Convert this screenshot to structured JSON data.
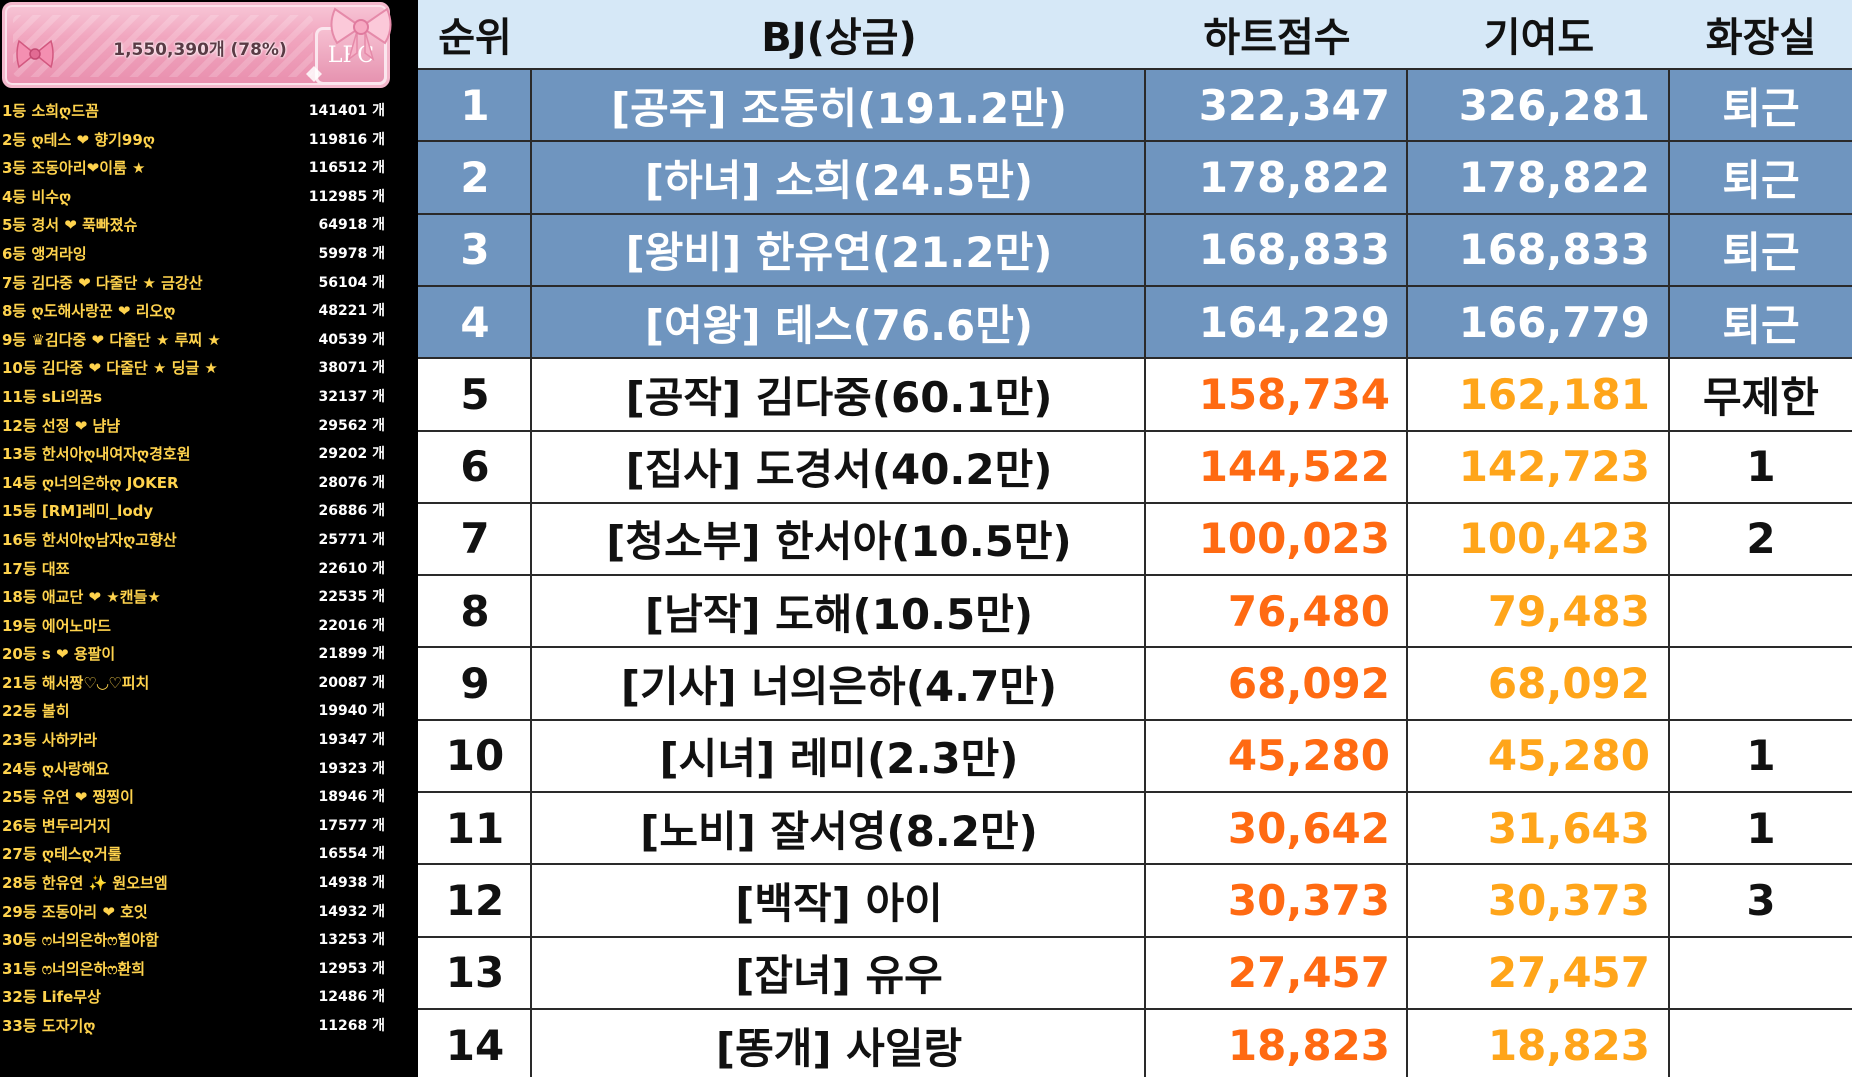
{
  "banner": {
    "total": "1,550,390개 (78%)",
    "logo": "LPC"
  },
  "ranking_list": [
    {
      "name": "1등 소희ღ드꼼",
      "count": "141401 개"
    },
    {
      "name": "2등 ღ테스 ❤ 향기99ღ",
      "count": "119816 개"
    },
    {
      "name": "3등 조동아리❤이룸 ★",
      "count": "116512 개"
    },
    {
      "name": "4등 비수ღ",
      "count": "112985 개"
    },
    {
      "name": "5등 경서 ❤ 푹빠졌슈",
      "count": "64918 개"
    },
    {
      "name": "6등 앵겨라잉",
      "count": "59978 개"
    },
    {
      "name": "7등 김다중 ❤ 다줄단 ★ 금강산",
      "count": "56104 개"
    },
    {
      "name": "8등 ღ도해사랑꾼 ❤ 리오ღ",
      "count": "48221 개"
    },
    {
      "name": "9등 ♛김다중 ❤ 다줄단 ★ 루찌 ★",
      "count": "40539 개"
    },
    {
      "name": "10등 김다중 ❤ 다줄단 ★ 딩글 ★",
      "count": "38071 개"
    },
    {
      "name": "11등 sLi의꿈s",
      "count": "32137 개"
    },
    {
      "name": "12등 선정 ❤ 냠냠",
      "count": "29562 개"
    },
    {
      "name": "13등 한서아ღ내여자ღ경호원",
      "count": "29202 개"
    },
    {
      "name": "14등 ღ너의은하ღ JOKER",
      "count": "28076 개"
    },
    {
      "name": "15등 [RM]레미_lody",
      "count": "26886 개"
    },
    {
      "name": "16등 한서아ღ남자ღ고향산",
      "count": "25771 개"
    },
    {
      "name": "17등 대쬬",
      "count": "22610 개"
    },
    {
      "name": "18등 애교단 ❤ ★캔들★",
      "count": "22535 개"
    },
    {
      "name": "19등 에어노마드",
      "count": "22016 개"
    },
    {
      "name": "20등 s ❤ 용팔이",
      "count": "21899 개"
    },
    {
      "name": "21등 해서짱♡◡♡피치",
      "count": "20087 개"
    },
    {
      "name": "22등 볼히",
      "count": "19940 개"
    },
    {
      "name": "23등 사하카라",
      "count": "19347 개"
    },
    {
      "name": "24등 ღ사랑해요",
      "count": "19323 개"
    },
    {
      "name": "25등 유연 ❤ 찡찡이",
      "count": "18946 개"
    },
    {
      "name": "26등 변두리거지",
      "count": "17577 개"
    },
    {
      "name": "27등 ღ테스ღ거룰",
      "count": "16554 개"
    },
    {
      "name": "28등 한유연 ✨ 원오브엠",
      "count": "14938 개"
    },
    {
      "name": "29등 조동아리 ❤ 호잇",
      "count": "14932 개"
    },
    {
      "name": "30등 ෆ너의은하ෆ헐야함",
      "count": "13253 개"
    },
    {
      "name": "31등 ෆ너의은하ෆ환희",
      "count": "12953 개"
    },
    {
      "name": "32등 Life무상",
      "count": "12486 개"
    },
    {
      "name": "33등 도자기ღ",
      "count": "11268 개"
    }
  ],
  "table": {
    "headers": {
      "rank": "순위",
      "bj": "BJ(상금)",
      "heart": "하트점수",
      "contrib": "기여도",
      "toilet": "화장실"
    },
    "rows": [
      {
        "rank": "1",
        "bj": "[공주] 조동히(191.2만)",
        "heart": "322,347",
        "contrib": "326,281",
        "toilet": "퇴근",
        "highlight": true
      },
      {
        "rank": "2",
        "bj": "[하녀] 소희(24.5만)",
        "heart": "178,822",
        "contrib": "178,822",
        "toilet": "퇴근",
        "highlight": true
      },
      {
        "rank": "3",
        "bj": "[왕비] 한유연(21.2만)",
        "heart": "168,833",
        "contrib": "168,833",
        "toilet": "퇴근",
        "highlight": true
      },
      {
        "rank": "4",
        "bj": "[여왕] 테스(76.6만)",
        "heart": "164,229",
        "contrib": "166,779",
        "toilet": "퇴근",
        "highlight": true
      },
      {
        "rank": "5",
        "bj": "[공작] 김다중(60.1만)",
        "heart": "158,734",
        "contrib": "162,181",
        "toilet": "무제한",
        "highlight": false
      },
      {
        "rank": "6",
        "bj": "[집사] 도경서(40.2만)",
        "heart": "144,522",
        "contrib": "142,723",
        "toilet": "1",
        "highlight": false
      },
      {
        "rank": "7",
        "bj": "[청소부] 한서아(10.5만)",
        "heart": "100,023",
        "contrib": "100,423",
        "toilet": "2",
        "highlight": false
      },
      {
        "rank": "8",
        "bj": "[남작] 도해(10.5만)",
        "heart": "76,480",
        "contrib": "79,483",
        "toilet": "",
        "highlight": false
      },
      {
        "rank": "9",
        "bj": "[기사] 너의은하(4.7만)",
        "heart": "68,092",
        "contrib": "68,092",
        "toilet": "",
        "highlight": false
      },
      {
        "rank": "10",
        "bj": "[시녀] 레미(2.3만)",
        "heart": "45,280",
        "contrib": "45,280",
        "toilet": "1",
        "highlight": false
      },
      {
        "rank": "11",
        "bj": "[노비] 잘서영(8.2만)",
        "heart": "30,642",
        "contrib": "31,643",
        "toilet": "1",
        "highlight": false
      },
      {
        "rank": "12",
        "bj": "[백작] 아이",
        "heart": "30,373",
        "contrib": "30,373",
        "toilet": "3",
        "highlight": false
      },
      {
        "rank": "13",
        "bj": "[잡녀] 유우",
        "heart": "27,457",
        "contrib": "27,457",
        "toilet": "",
        "highlight": false
      },
      {
        "rank": "14",
        "bj": "[똥개] 사일랑",
        "heart": "18,823",
        "contrib": "18,823",
        "toilet": "",
        "highlight": false
      }
    ]
  },
  "colors": {
    "header_bg": "#d6e8f7",
    "top_row_bg": "#6f95bf",
    "heart_text": "#ff6a12",
    "contrib_text": "#ffa51a",
    "list_name": "#ffd34d"
  }
}
